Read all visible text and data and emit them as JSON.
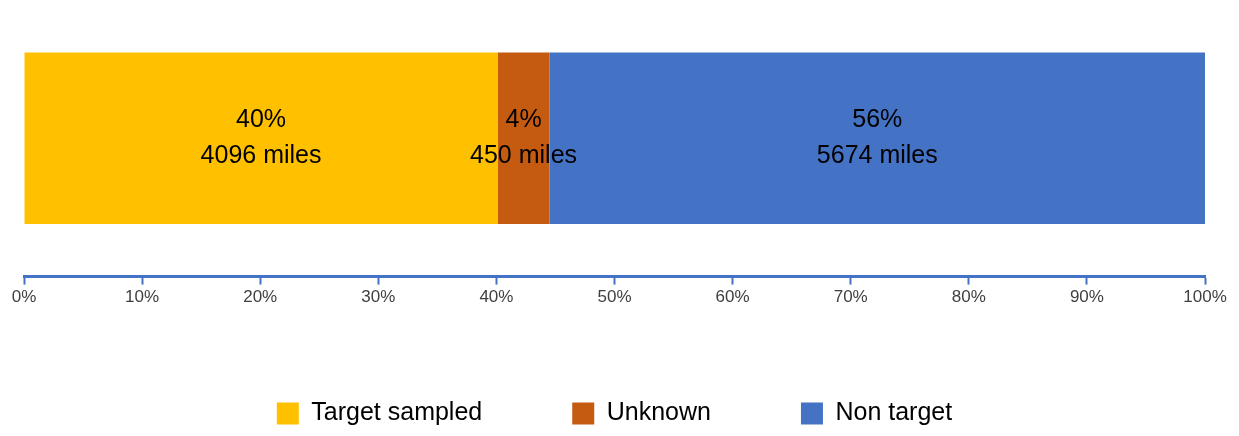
{
  "chart_data": {
    "type": "bar",
    "orientation": "horizontal",
    "stacked": true,
    "categories": [
      null
    ],
    "series": [
      {
        "name": "Target sampled",
        "color": "#ffc000",
        "values": [
          40.1
        ],
        "value_labels": [
          "40%\n4096 miles"
        ]
      },
      {
        "name": "Unknown",
        "color": "#c55a11",
        "values": [
          4.4
        ],
        "value_labels": [
          "4%\n450 miles"
        ]
      },
      {
        "name": "Non target",
        "color": "#4472c4",
        "values": [
          55.5
        ],
        "value_labels": [
          "56%\n5674 miles"
        ]
      }
    ],
    "xlim": [
      0,
      100
    ],
    "xticks": [
      {
        "value": 0,
        "label": "0%"
      },
      {
        "value": 10,
        "label": "10%"
      },
      {
        "value": 20,
        "label": "20%"
      },
      {
        "value": 30,
        "label": "30%"
      },
      {
        "value": 40,
        "label": "40%"
      },
      {
        "value": 50,
        "label": "50%"
      },
      {
        "value": 60,
        "label": "60%"
      },
      {
        "value": 70,
        "label": "70%"
      },
      {
        "value": 80,
        "label": "80%"
      },
      {
        "value": 90,
        "label": "90%"
      },
      {
        "value": 100,
        "label": "100%"
      }
    ],
    "grid": false,
    "legend": "bottom",
    "tick_labels": "x"
  }
}
